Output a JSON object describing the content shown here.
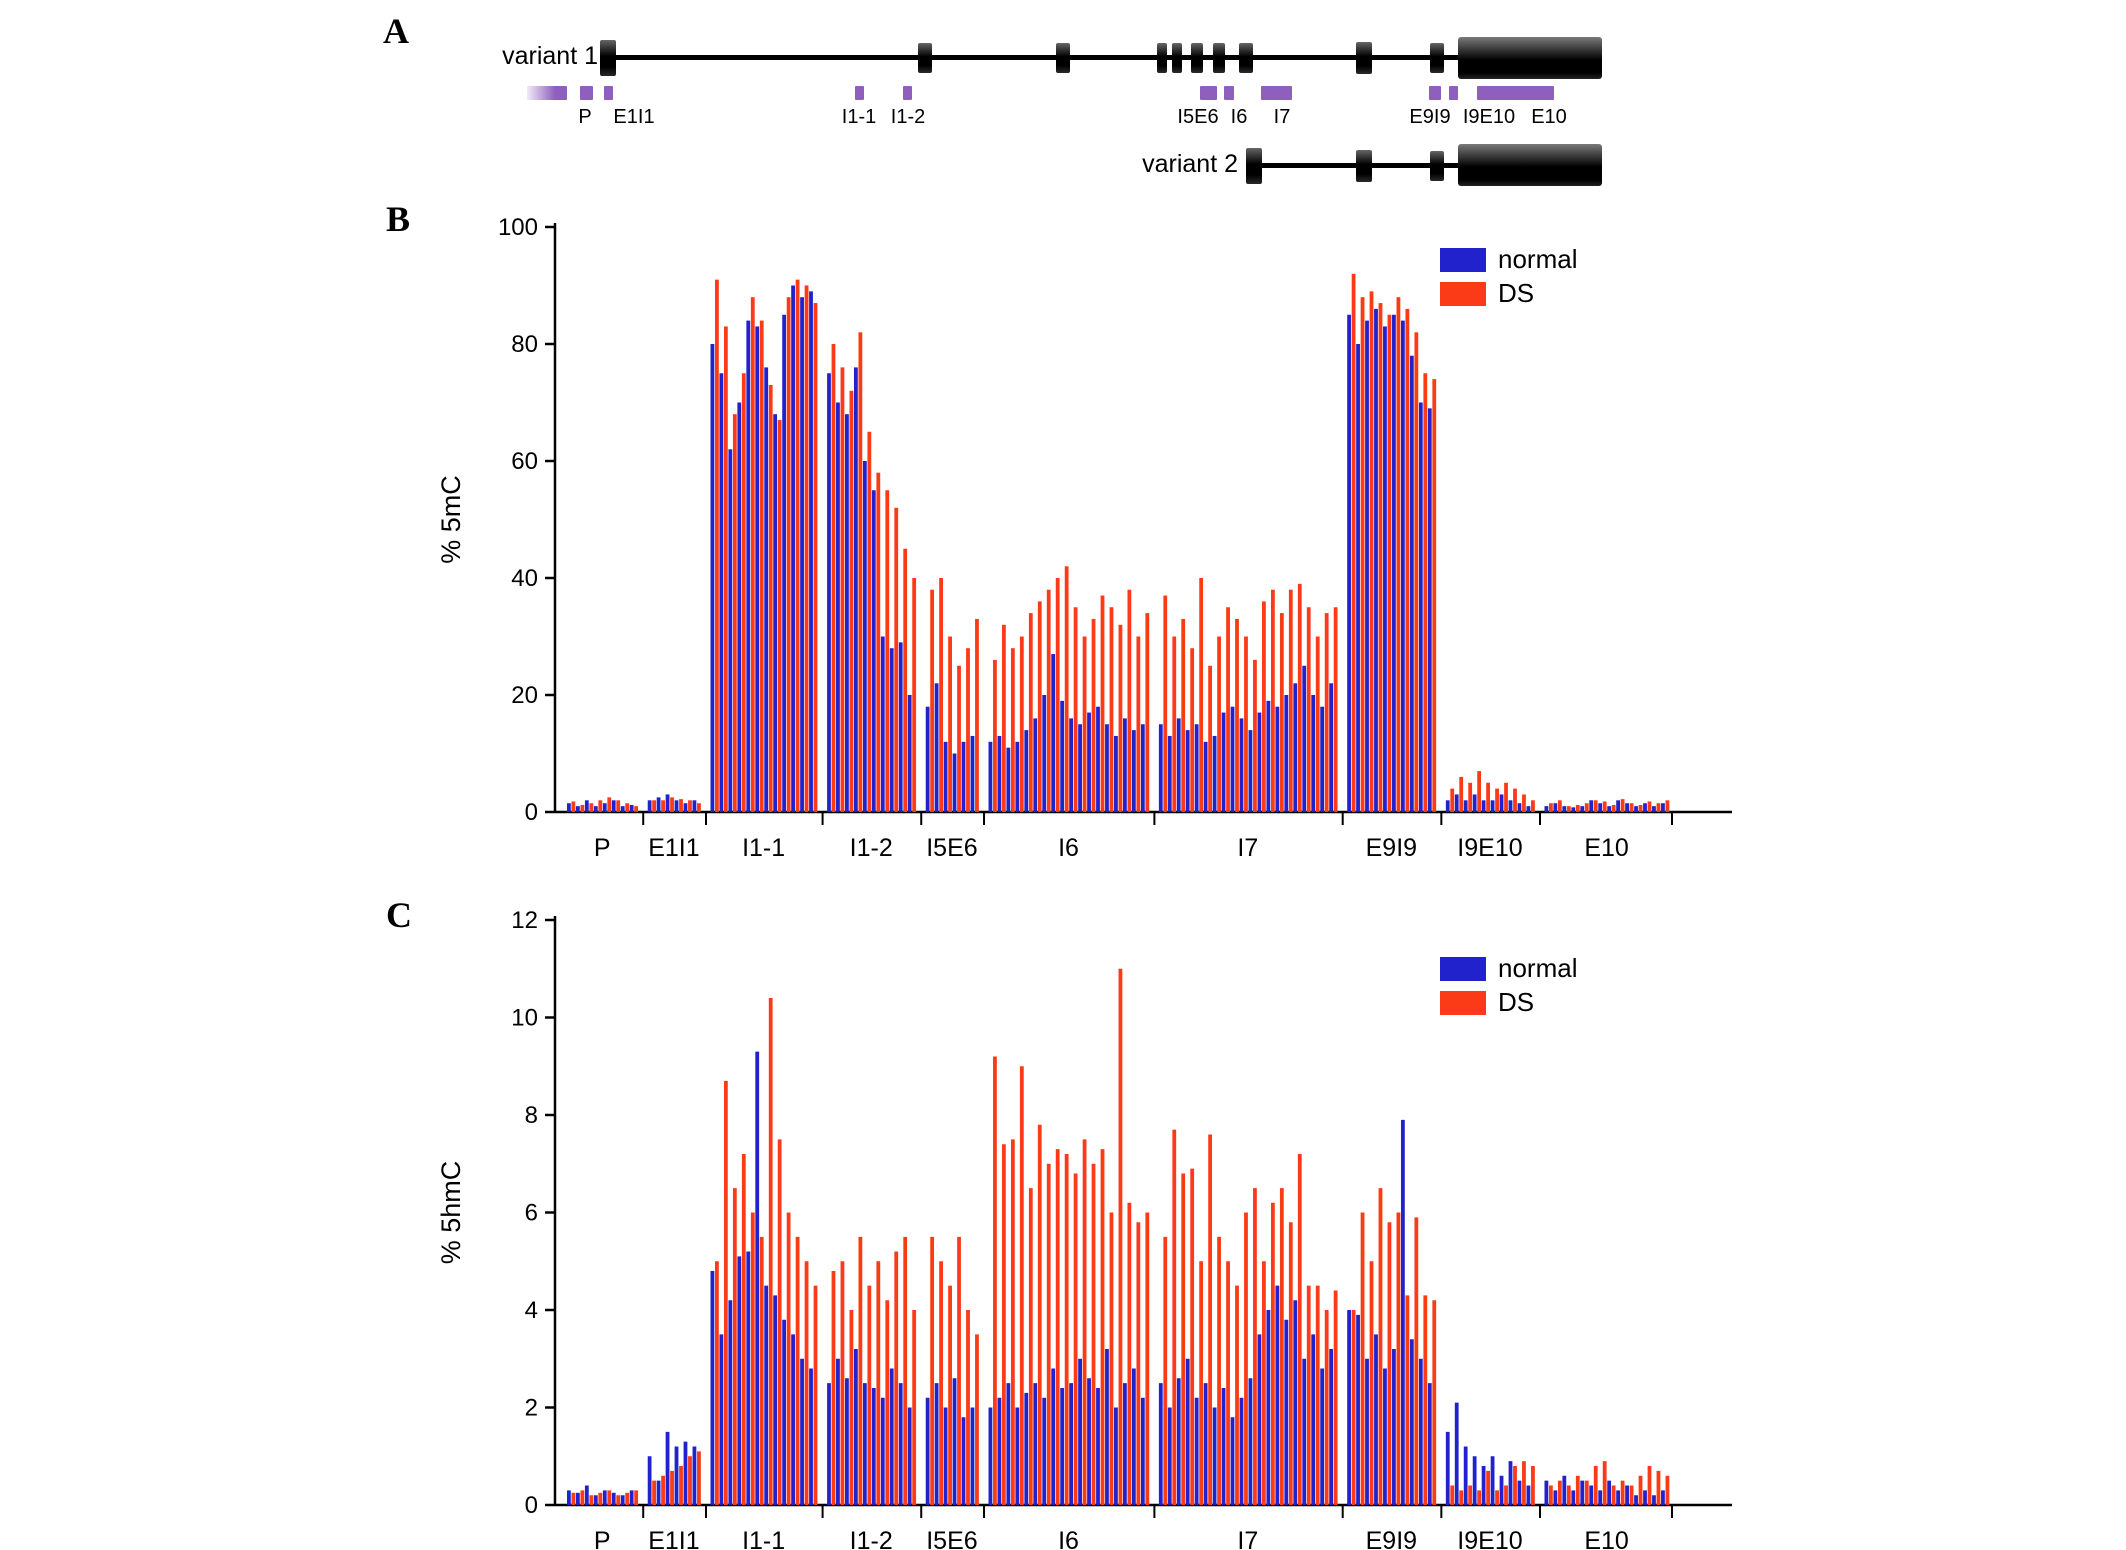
{
  "figure": {
    "panel_a": {
      "letter": "A",
      "variant1_label": "variant 1",
      "variant2_label": "variant 2",
      "amplicon_labels": [
        "P",
        "E1I1",
        "I1-1",
        "I1-2",
        "I5E6",
        "I6",
        "I7",
        "E9I9",
        "I9E10",
        "E10"
      ],
      "amplicon_color": "#8f5fbe",
      "exon_color": "#000000"
    },
    "panel_b": {
      "letter": "B"
    },
    "panel_c": {
      "letter": "C"
    }
  },
  "chart_data": [
    {
      "type": "bar",
      "panel": "B",
      "title": "",
      "xlabel": "",
      "ylabel": "% 5mC",
      "ylim": [
        0,
        100
      ],
      "yticks": [
        0,
        20,
        40,
        60,
        80,
        100
      ],
      "grid": false,
      "legend": [
        "normal",
        "DS"
      ],
      "legend_position": "top-right",
      "series_colors": {
        "normal": "#2222cc",
        "DS": "#fb3a17"
      },
      "categories": [
        "P",
        "E1I1",
        "I1-1",
        "I1-2",
        "I5E6",
        "I6",
        "I7",
        "E9I9",
        "I9E10",
        "E10"
      ],
      "regions": [
        {
          "label": "P",
          "normal": [
            1.5,
            1,
            2,
            1,
            1.5,
            2,
            1,
            1.2
          ],
          "DS": [
            1.8,
            1.2,
            1.5,
            2,
            2.5,
            2,
            1.5,
            1
          ]
        },
        {
          "label": "E1I1",
          "normal": [
            2,
            2.5,
            3,
            2,
            1.5,
            2
          ],
          "DS": [
            2,
            2,
            2.5,
            2.2,
            2,
            1.5
          ]
        },
        {
          "label": "I1-1",
          "normal": [
            80,
            75,
            62,
            70,
            84,
            83,
            76,
            68,
            85,
            90,
            88,
            89
          ],
          "DS": [
            91,
            83,
            68,
            75,
            88,
            84,
            73,
            67,
            88,
            91,
            90,
            87
          ]
        },
        {
          "label": "I1-2",
          "normal": [
            75,
            70,
            68,
            76,
            60,
            55,
            30,
            28,
            29,
            20
          ],
          "DS": [
            80,
            76,
            72,
            82,
            65,
            58,
            55,
            52,
            45,
            40
          ]
        },
        {
          "label": "I5E6",
          "normal": [
            18,
            22,
            12,
            10,
            12,
            13
          ],
          "DS": [
            38,
            40,
            30,
            25,
            28,
            33
          ]
        },
        {
          "label": "I6",
          "normal": [
            12,
            13,
            11,
            12,
            14,
            16,
            20,
            27,
            19,
            16,
            15,
            17,
            18,
            15,
            13,
            16,
            14,
            15
          ],
          "DS": [
            26,
            32,
            28,
            30,
            34,
            36,
            38,
            40,
            42,
            35,
            30,
            33,
            37,
            35,
            32,
            38,
            30,
            34
          ]
        },
        {
          "label": "I7",
          "normal": [
            15,
            13,
            16,
            14,
            15,
            12,
            13,
            17,
            18,
            16,
            14,
            17,
            19,
            18,
            20,
            22,
            25,
            20,
            18,
            22
          ],
          "DS": [
            37,
            30,
            33,
            28,
            40,
            25,
            30,
            35,
            33,
            30,
            26,
            36,
            38,
            34,
            38,
            39,
            35,
            30,
            34,
            35
          ]
        },
        {
          "label": "E9I9",
          "normal": [
            85,
            80,
            84,
            86,
            83,
            85,
            84,
            78,
            70,
            69
          ],
          "DS": [
            92,
            88,
            89,
            87,
            85,
            88,
            86,
            82,
            75,
            74
          ]
        },
        {
          "label": "I9E10",
          "normal": [
            2,
            3,
            2,
            3,
            2,
            2,
            3,
            2,
            1.5,
            1
          ],
          "DS": [
            4,
            6,
            5,
            7,
            5,
            4,
            5,
            4,
            3,
            2
          ]
        },
        {
          "label": "E10",
          "normal": [
            1,
            1.5,
            1,
            0.8,
            1,
            2,
            1.5,
            1,
            2,
            1.5,
            1,
            1.5,
            1,
            1.5
          ],
          "DS": [
            1.5,
            2,
            1,
            1.2,
            1.5,
            2,
            1.8,
            1.2,
            2.2,
            1.5,
            1.2,
            1.8,
            1.5,
            2
          ]
        }
      ]
    },
    {
      "type": "bar",
      "panel": "C",
      "title": "",
      "xlabel": "",
      "ylabel": "% 5hmC",
      "ylim": [
        0,
        12
      ],
      "yticks": [
        0,
        2,
        4,
        6,
        8,
        10,
        12
      ],
      "grid": false,
      "legend": [
        "normal",
        "DS"
      ],
      "legend_position": "top-right",
      "series_colors": {
        "normal": "#2222cc",
        "DS": "#fb3a17"
      },
      "categories": [
        "P",
        "E1I1",
        "I1-1",
        "I1-2",
        "I5E6",
        "I6",
        "I7",
        "E9I9",
        "I9E10",
        "E10"
      ],
      "regions": [
        {
          "label": "P",
          "normal": [
            0.3,
            0.25,
            0.4,
            0.2,
            0.3,
            0.25,
            0.2,
            0.3
          ],
          "DS": [
            0.25,
            0.3,
            0.2,
            0.25,
            0.3,
            0.2,
            0.25,
            0.3
          ]
        },
        {
          "label": "E1I1",
          "normal": [
            1.0,
            0.5,
            1.5,
            1.2,
            1.3,
            1.2
          ],
          "DS": [
            0.5,
            0.6,
            0.7,
            0.8,
            1.0,
            1.1
          ]
        },
        {
          "label": "I1-1",
          "normal": [
            4.8,
            3.5,
            4.2,
            5.1,
            5.2,
            9.3,
            4.5,
            4.3,
            3.8,
            3.5,
            3.0,
            2.8
          ],
          "DS": [
            5.0,
            8.7,
            6.5,
            7.2,
            6.0,
            5.5,
            10.4,
            7.5,
            6.0,
            5.5,
            5.0,
            4.5
          ]
        },
        {
          "label": "I1-2",
          "normal": [
            2.5,
            3.0,
            2.6,
            3.2,
            2.5,
            2.4,
            2.2,
            2.8,
            2.5,
            2.0
          ],
          "DS": [
            4.8,
            5.0,
            4.0,
            5.5,
            4.5,
            5.0,
            4.2,
            5.2,
            5.5,
            4.0
          ]
        },
        {
          "label": "I5E6",
          "normal": [
            2.2,
            2.5,
            2.0,
            2.6,
            1.8,
            2.0
          ],
          "DS": [
            5.5,
            5.0,
            4.5,
            5.5,
            4.0,
            3.5
          ]
        },
        {
          "label": "I6",
          "normal": [
            2.0,
            2.2,
            2.5,
            2.0,
            2.3,
            2.5,
            2.2,
            2.8,
            2.4,
            2.5,
            3.0,
            2.6,
            2.4,
            3.2,
            2.0,
            2.5,
            2.8,
            2.2
          ],
          "DS": [
            9.2,
            7.4,
            7.5,
            9.0,
            6.5,
            7.8,
            7.0,
            7.3,
            7.2,
            6.8,
            7.5,
            7.0,
            7.3,
            6.0,
            11.0,
            6.2,
            5.8,
            6.0
          ]
        },
        {
          "label": "I7",
          "normal": [
            2.5,
            2.0,
            2.6,
            3.0,
            2.2,
            2.5,
            2.0,
            2.4,
            1.8,
            2.2,
            2.6,
            3.5,
            4.0,
            4.5,
            3.8,
            4.2,
            3.0,
            3.5,
            2.8,
            3.2
          ],
          "DS": [
            5.5,
            7.7,
            6.8,
            6.9,
            5.0,
            7.6,
            5.5,
            5.0,
            4.5,
            6.0,
            6.5,
            5.0,
            6.2,
            6.5,
            5.8,
            7.2,
            4.5,
            4.5,
            4.0,
            4.4
          ]
        },
        {
          "label": "E9I9",
          "normal": [
            4.0,
            3.9,
            3.0,
            3.5,
            2.8,
            3.2,
            7.9,
            3.4,
            3.0,
            2.5
          ],
          "DS": [
            4.0,
            6.0,
            5.0,
            6.5,
            5.8,
            6.0,
            4.3,
            5.9,
            4.3,
            4.2
          ]
        },
        {
          "label": "I9E10",
          "normal": [
            1.5,
            2.1,
            1.2,
            1.0,
            0.8,
            1.0,
            0.6,
            0.9,
            0.5,
            0.4
          ],
          "DS": [
            0.4,
            0.3,
            0.4,
            0.3,
            0.7,
            0.3,
            0.4,
            0.8,
            0.9,
            0.8
          ]
        },
        {
          "label": "E10",
          "normal": [
            0.5,
            0.3,
            0.6,
            0.3,
            0.5,
            0.4,
            0.3,
            0.5,
            0.3,
            0.4,
            0.2,
            0.3,
            0.2,
            0.3
          ],
          "DS": [
            0.4,
            0.5,
            0.4,
            0.6,
            0.5,
            0.8,
            0.9,
            0.4,
            0.5,
            0.4,
            0.6,
            0.8,
            0.7,
            0.6
          ]
        }
      ]
    }
  ]
}
